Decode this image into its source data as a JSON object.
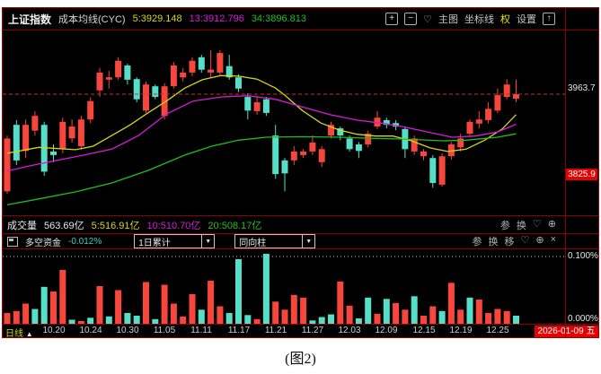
{
  "header": {
    "title": "上证指数",
    "indicator_name": "成本均线(CYC)",
    "ma_labels": [
      {
        "text": "5:3929.148",
        "color": "#d6d61a"
      },
      {
        "text": "13:3912.796",
        "color": "#d91ad9"
      },
      {
        "text": "34:3896.813",
        "color": "#1fbf1f"
      }
    ],
    "tools": {
      "zoom_in": "+",
      "zoom_out": "−",
      "favorite": "♡",
      "main_chart": "主图",
      "axis_lines": "坐标线",
      "rights": "权",
      "settings": "设置",
      "expand": "↑"
    }
  },
  "volume_row": {
    "label": "成交量",
    "value": "563.69亿",
    "ma_labels": [
      {
        "text": "5:516.91亿",
        "color": "#d6d61a"
      },
      {
        "text": "10:510.70亿",
        "color": "#d91ad9"
      },
      {
        "text": "20:508.17亿",
        "color": "#1fbf1f"
      }
    ],
    "actions": [
      "参",
      "换"
    ],
    "icons": [
      "♡",
      "⊕"
    ]
  },
  "indicator_row": {
    "label": "多空资金",
    "value": "-0.012%",
    "dropdowns": [
      "1日累计",
      "同向柱"
    ],
    "actions": [
      "参",
      "换",
      "移"
    ],
    "icons": [
      "♡",
      "⊕",
      "×"
    ]
  },
  "axis": {
    "price_last": "3963.7",
    "price_badge": "3825.9",
    "pct_top": "0.100%",
    "pct_bottom": "0.000%",
    "period_label": "日线",
    "period_arrow": "▲",
    "date_badge": "2026-01-09 五"
  },
  "caption": "(图2)",
  "colors": {
    "up": "#f7463c",
    "down": "#55dfc8",
    "ma5": "#d6d61a",
    "ma13": "#d91ad9",
    "ma34": "#1fbf1f",
    "dashed_price": "#c23428",
    "grid_dot": "#c8c8c8"
  },
  "chart_data": {
    "type": "candlestick",
    "symbol": "上证指数",
    "overlay": "成本均线(CYC)",
    "period": "日线",
    "y_range": [
      3758,
      4071
    ],
    "last_price": 3963.7,
    "marked_price": 3825.9,
    "candles": [
      [
        3800,
        3894,
        3796,
        3889
      ],
      [
        3912,
        3920,
        3844,
        3852
      ],
      [
        3868,
        3921,
        3856,
        3912
      ],
      [
        3902,
        3935,
        3894,
        3927
      ],
      [
        3912,
        3917,
        3826,
        3833
      ],
      [
        3867,
        3879,
        3849,
        3861
      ],
      [
        3871,
        3924,
        3864,
        3917
      ],
      [
        3889,
        3921,
        3882,
        3909
      ],
      [
        3876,
        3927,
        3870,
        3921
      ],
      [
        3921,
        3958,
        3915,
        3952
      ],
      [
        3970,
        4008,
        3959,
        4000
      ],
      [
        3988,
        4003,
        3973,
        3992
      ],
      [
        3992,
        4026,
        3988,
        4020
      ],
      [
        4012,
        4015,
        3980,
        3988
      ],
      [
        3989,
        3992,
        3950,
        3955
      ],
      [
        3936,
        3985,
        3932,
        3980
      ],
      [
        3977,
        3980,
        3955,
        3959
      ],
      [
        3927,
        3982,
        3921,
        3977
      ],
      [
        3977,
        4018,
        3973,
        4012
      ],
      [
        3992,
        4008,
        3985,
        4000
      ],
      [
        4000,
        4026,
        3994,
        4020
      ],
      [
        4026,
        4030,
        4000,
        4005
      ],
      [
        4000,
        4038,
        3992,
        4005
      ],
      [
        4000,
        4038,
        3996,
        4033
      ],
      [
        4011,
        4030,
        3988,
        3992
      ],
      [
        3992,
        3997,
        3967,
        3973
      ],
      [
        3959,
        3965,
        3921,
        3936
      ],
      [
        3935,
        3958,
        3929,
        3950
      ],
      [
        3955,
        3959,
        3927,
        3932
      ],
      [
        3894,
        3912,
        3821,
        3829
      ],
      [
        3852,
        3856,
        3800,
        3830
      ],
      [
        3852,
        3876,
        3844,
        3867
      ],
      [
        3861,
        3871,
        3856,
        3867
      ],
      [
        3867,
        3894,
        3861,
        3882
      ],
      [
        3849,
        3876,
        3841,
        3871
      ],
      [
        3894,
        3917,
        3889,
        3912
      ],
      [
        3906,
        3909,
        3886,
        3894
      ],
      [
        3889,
        3894,
        3867,
        3871
      ],
      [
        3879,
        3883,
        3856,
        3868
      ],
      [
        3879,
        3902,
        3874,
        3897
      ],
      [
        3909,
        3935,
        3905,
        3924
      ],
      [
        3920,
        3924,
        3906,
        3912
      ],
      [
        3915,
        3920,
        3903,
        3909
      ],
      [
        3905,
        3909,
        3856,
        3871
      ],
      [
        3867,
        3894,
        3861,
        3889
      ],
      [
        3859,
        3871,
        3852,
        3867
      ],
      [
        3856,
        3861,
        3806,
        3814
      ],
      [
        3811,
        3864,
        3808,
        3859
      ],
      [
        3859,
        3883,
        3853,
        3879
      ],
      [
        3874,
        3897,
        3867,
        3889
      ],
      [
        3897,
        3921,
        3891,
        3917
      ],
      [
        3914,
        3935,
        3906,
        3921
      ],
      [
        3920,
        3950,
        3914,
        3939
      ],
      [
        3936,
        3973,
        3932,
        3962
      ],
      [
        3959,
        3989,
        3955,
        3980
      ],
      [
        3956,
        3988,
        3950,
        3963.7
      ]
    ],
    "ma_lines": [
      {
        "name": "CYC5",
        "color": "#d6d61a",
        "points": [
          [
            0,
            3864
          ],
          [
            3.4,
            3874
          ],
          [
            7.4,
            3870
          ],
          [
            9.3,
            3876
          ],
          [
            11.3,
            3894
          ],
          [
            13.3,
            3912
          ],
          [
            15.2,
            3932
          ],
          [
            17.2,
            3952
          ],
          [
            19.2,
            3974
          ],
          [
            21.1,
            3988
          ],
          [
            23.1,
            3995
          ],
          [
            25,
            3994
          ],
          [
            27,
            3989
          ],
          [
            29,
            3974
          ],
          [
            30,
            3962
          ],
          [
            31.9,
            3936
          ],
          [
            33.9,
            3915
          ],
          [
            35.9,
            3903
          ],
          [
            37.8,
            3896
          ],
          [
            39.8,
            3893
          ],
          [
            41.7,
            3893
          ],
          [
            43.7,
            3885
          ],
          [
            45.7,
            3873
          ],
          [
            47.6,
            3867
          ],
          [
            49.6,
            3871
          ],
          [
            51.6,
            3886
          ],
          [
            53.5,
            3905
          ],
          [
            55,
            3929.1
          ]
        ]
      },
      {
        "name": "CYC13",
        "color": "#d91ad9",
        "points": [
          [
            0,
            3834
          ],
          [
            2.5,
            3843
          ],
          [
            5.4,
            3852
          ],
          [
            8.3,
            3861
          ],
          [
            11.3,
            3871
          ],
          [
            14.2,
            3894
          ],
          [
            17.2,
            3930
          ],
          [
            20.1,
            3952
          ],
          [
            23.1,
            3959
          ],
          [
            26,
            3961
          ],
          [
            29,
            3955
          ],
          [
            31.9,
            3942
          ],
          [
            34.9,
            3929
          ],
          [
            37.8,
            3920
          ],
          [
            40.8,
            3914
          ],
          [
            42.7,
            3909
          ],
          [
            45.7,
            3899
          ],
          [
            48.1,
            3891
          ],
          [
            50.6,
            3893
          ],
          [
            53,
            3900
          ],
          [
            55,
            3912.8
          ]
        ]
      },
      {
        "name": "CYC34",
        "color": "#1fbf1f",
        "points": [
          [
            0,
            3777
          ],
          [
            3.4,
            3787
          ],
          [
            7.4,
            3799
          ],
          [
            11.3,
            3814
          ],
          [
            15.2,
            3835
          ],
          [
            19.2,
            3861
          ],
          [
            22.1,
            3876
          ],
          [
            25,
            3886
          ],
          [
            28,
            3891
          ],
          [
            31.9,
            3892
          ],
          [
            35.9,
            3891
          ],
          [
            39.8,
            3889
          ],
          [
            42.7,
            3888
          ],
          [
            47.1,
            3885
          ],
          [
            49.6,
            3886
          ],
          [
            53,
            3891
          ],
          [
            55,
            3896.8
          ]
        ]
      }
    ],
    "x_ticks": [
      {
        "i": 5,
        "t": "10.20"
      },
      {
        "i": 9,
        "t": "10.24"
      },
      {
        "i": 13,
        "t": "10.30"
      },
      {
        "i": 17,
        "t": "11.05"
      },
      {
        "i": 21,
        "t": "11.11"
      },
      {
        "i": 25,
        "t": "11.17"
      },
      {
        "i": 29,
        "t": "11.21"
      },
      {
        "i": 33,
        "t": "11.27"
      },
      {
        "i": 37,
        "t": "12.03"
      },
      {
        "i": 41,
        "t": "12.09"
      },
      {
        "i": 45,
        "t": "12.15"
      },
      {
        "i": 49,
        "t": "12.19"
      },
      {
        "i": 53,
        "t": "12.25"
      }
    ],
    "sub_chart": {
      "name": "多空资金",
      "modes": [
        "1日累计",
        "同向柱"
      ],
      "unit": "%",
      "y_max": 0.105,
      "grid_value": 0.1,
      "current": -0.012,
      "values": [
        0.016,
        0.019,
        0.03,
        -0.022,
        -0.055,
        0.048,
        0.08,
        -0.006,
        0.004,
        -0.009,
        0.056,
        -0.011,
        0.05,
        -0.016,
        -0.012,
        0.062,
        -0.007,
        0.058,
        0.03,
        0.011,
        0.044,
        -0.021,
        0.064,
        0.026,
        -0.016,
        -0.096,
        -0.013,
        0.007,
        -0.104,
        0.033,
        0.021,
        0.043,
        0.039,
        -0.005,
        -0.01,
        -0.014,
        0.063,
        0.027,
        -0.008,
        -0.039,
        0.015,
        -0.037,
        0.031,
        0.021,
        -0.041,
        0.012,
        0.026,
        -0.019,
        0.061,
        0.021,
        -0.039,
        0.036,
        0.016,
        0.022,
        0.019,
        -0.012
      ]
    }
  }
}
